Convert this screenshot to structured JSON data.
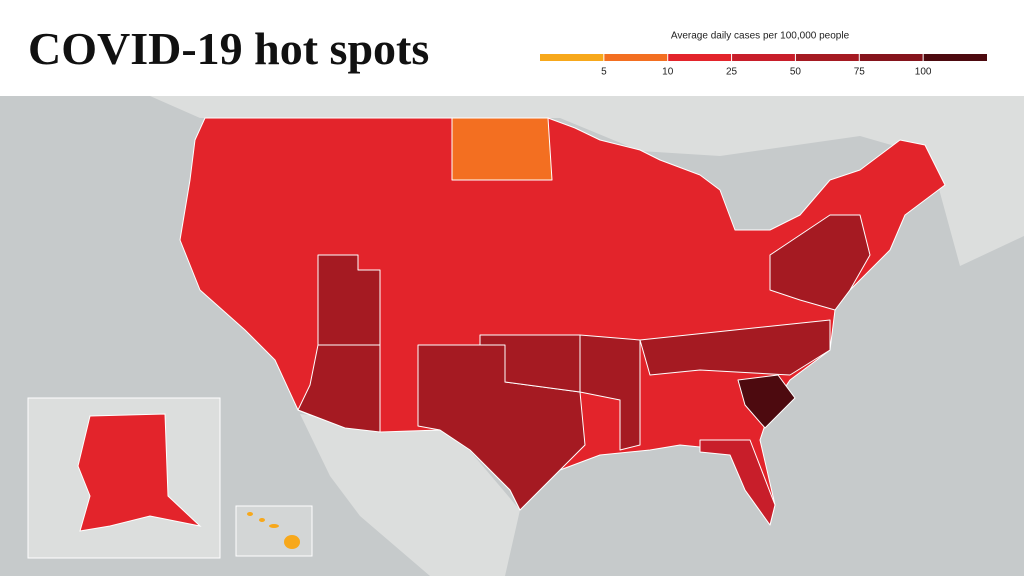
{
  "header": {
    "title": "COVID-19 hot spots"
  },
  "legend": {
    "title": "Average daily cases per 100,000 people",
    "colors": [
      "#f7a81b",
      "#f36f21",
      "#e3242b",
      "#c81e2a",
      "#a51a22",
      "#85141c",
      "#4d0a0f"
    ],
    "ticks": [
      5,
      10,
      25,
      50,
      75,
      100
    ]
  }
}
